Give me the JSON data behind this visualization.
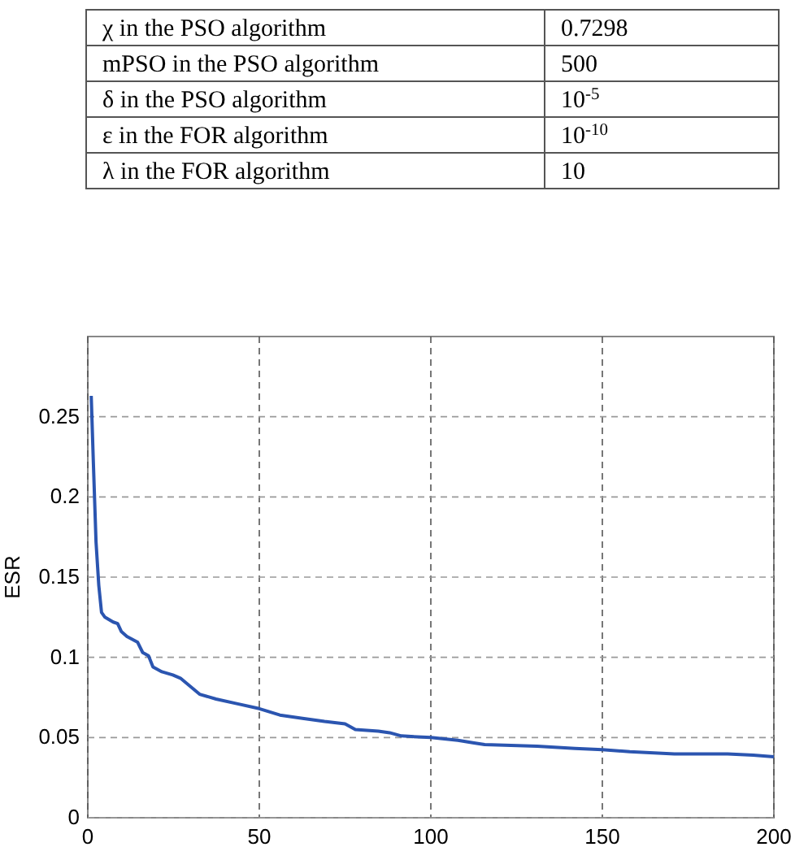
{
  "chart_data": [
    {
      "type": "other",
      "annotations": [
        "χ  in the PSO algorithm",
        "0.7298",
        "mPSO in the PSO algorithm",
        "500",
        "δ in the PSO algorithm",
        "10$^{-5}$",
        "ε in the FOR algorithm",
        "10$^{-10}$",
        "λ  in the FOR algorithm",
        "10"
      ]
    },
    {
      "type": "line",
      "ylabel": "ESR",
      "xlim": [
        0,
        200
      ],
      "ylim": [
        0,
        0.3
      ],
      "xticks": [
        0,
        50,
        100,
        150,
        200
      ],
      "yticks": [
        0,
        0.05,
        0.1,
        0.15,
        0.2,
        0.25
      ],
      "grid": true,
      "line_style": "solid",
      "series": [
        {
          "color": "#2b55b0",
          "x": [
            1,
            1.6,
            2.4,
            3.2,
            4,
            5,
            7.4,
            8.7,
            9.8,
            11.4,
            14.5,
            16,
            17.7,
            19,
            21.6,
            24.8,
            27,
            28.7,
            32.6,
            37.4,
            43.7,
            50,
            56,
            62.6,
            69,
            75,
            78,
            84.7,
            88,
            91.4,
            100,
            107.9,
            112.6,
            115.7,
            131,
            142,
            150,
            158,
            171,
            186.5,
            194,
            200
          ],
          "values": [
            0.263,
            0.223,
            0.172,
            0.145,
            0.128,
            0.125,
            0.122,
            0.121,
            0.116,
            0.113,
            0.1095,
            0.103,
            0.101,
            0.094,
            0.091,
            0.089,
            0.087,
            0.084,
            0.077,
            0.074,
            0.071,
            0.068,
            0.064,
            0.062,
            0.06,
            0.0585,
            0.055,
            0.054,
            0.053,
            0.051,
            0.05,
            0.0483,
            0.0466,
            0.0456,
            0.0446,
            0.0432,
            0.0425,
            0.0412,
            0.0398,
            0.0398,
            0.039,
            0.038
          ]
        }
      ]
    }
  ]
}
